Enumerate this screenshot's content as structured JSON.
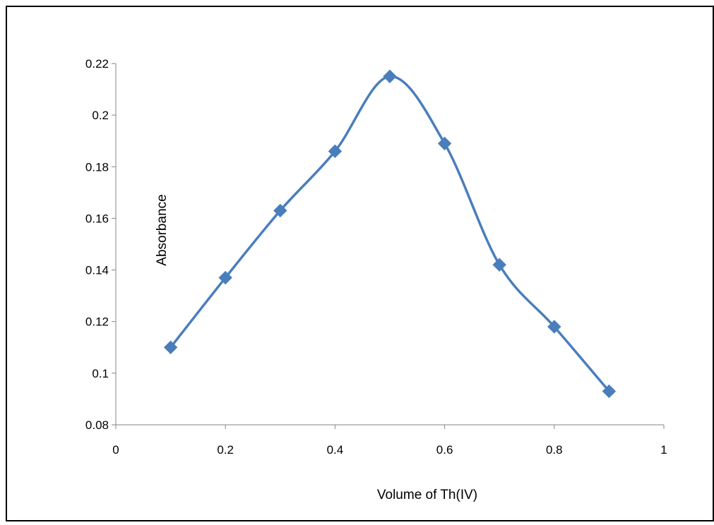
{
  "chart_data": {
    "type": "line",
    "title": "",
    "xlabel": "Volume of Th(IV)",
    "ylabel": "Absorbance",
    "xlim": [
      0,
      1
    ],
    "ylim": [
      0.08,
      0.22
    ],
    "x_ticks": [
      0,
      0.2,
      0.4,
      0.6,
      0.8,
      1
    ],
    "x_tick_labels": [
      "0",
      "0.2",
      "0.4",
      "0.6",
      "0.8",
      "1"
    ],
    "y_ticks": [
      0.08,
      0.1,
      0.12,
      0.14,
      0.16,
      0.18,
      0.2,
      0.22
    ],
    "y_tick_labels": [
      "0.08",
      "0.1",
      "0.12",
      "0.14",
      "0.16",
      "0.18",
      "0.2",
      "0.22"
    ],
    "grid": false,
    "legend": "none",
    "line_style": "smooth",
    "marker": "diamond",
    "series": [
      {
        "x": [
          0.1,
          0.2,
          0.3,
          0.4,
          0.5,
          0.6,
          0.7,
          0.8,
          0.9
        ],
        "values": [
          0.11,
          0.137,
          0.163,
          0.186,
          0.215,
          0.189,
          0.142,
          0.118,
          0.093
        ],
        "color": "#4a7ebb"
      }
    ]
  }
}
